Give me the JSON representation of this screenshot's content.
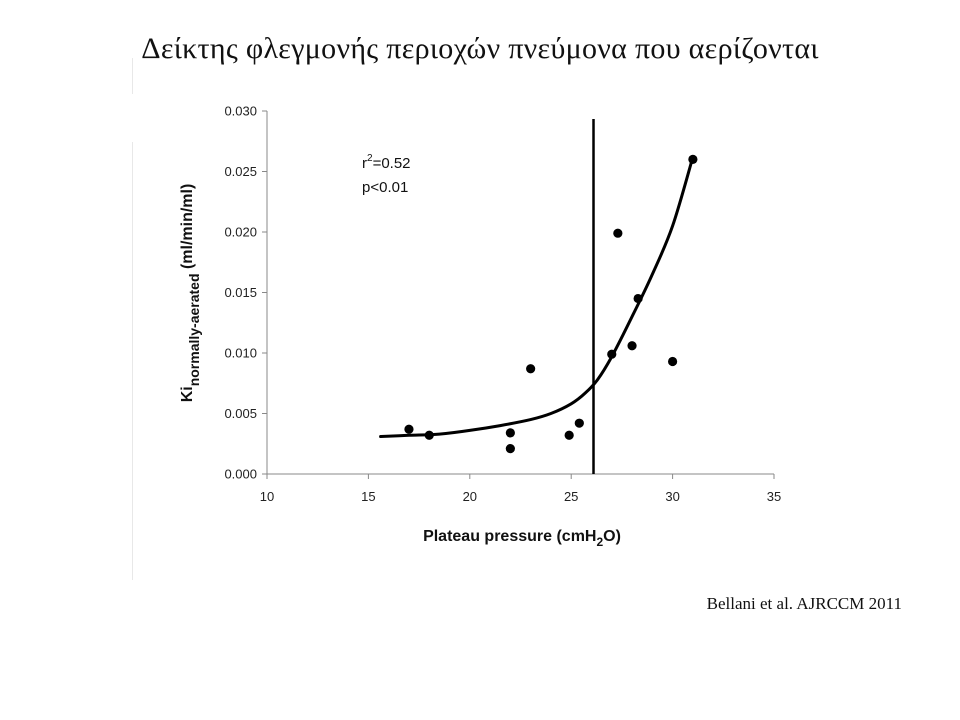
{
  "slide": {
    "title": "Δείκτης φλεγμονής περιοχών πνεύμονα που αερίζονται",
    "citation": "Bellani et al. AJRCCM 2011"
  },
  "chart_data": {
    "type": "scatter",
    "xlabel": {
      "main": "Plateau pressure (cmH",
      "sub": "2",
      "tail": "O)"
    },
    "ylabel": {
      "main": "Ki",
      "sub": "normally-aerated",
      "tail": " (ml/min/ml)"
    },
    "xlim": [
      10,
      35
    ],
    "ylim": [
      0,
      0.03
    ],
    "x_ticks": [
      10,
      15,
      20,
      25,
      30,
      35
    ],
    "y_ticks": [
      "0.000",
      "0.005",
      "0.010",
      "0.015",
      "0.020",
      "0.025",
      "0.030"
    ],
    "grid": false,
    "points": [
      {
        "x": 17.0,
        "y": 0.0037
      },
      {
        "x": 18.0,
        "y": 0.0032
      },
      {
        "x": 22.0,
        "y": 0.0034
      },
      {
        "x": 22.0,
        "y": 0.0021
      },
      {
        "x": 23.0,
        "y": 0.0087
      },
      {
        "x": 24.9,
        "y": 0.0032
      },
      {
        "x": 25.4,
        "y": 0.0042
      },
      {
        "x": 27.0,
        "y": 0.0099
      },
      {
        "x": 27.3,
        "y": 0.0199
      },
      {
        "x": 28.0,
        "y": 0.0106
      },
      {
        "x": 28.3,
        "y": 0.0145
      },
      {
        "x": 30.0,
        "y": 0.0093
      },
      {
        "x": 31.0,
        "y": 0.026
      }
    ],
    "fit_curve": [
      {
        "x": 15.6,
        "y": 0.0031
      },
      {
        "x": 17.0,
        "y": 0.0032
      },
      {
        "x": 18.5,
        "y": 0.0033
      },
      {
        "x": 20.0,
        "y": 0.0036
      },
      {
        "x": 21.5,
        "y": 0.004
      },
      {
        "x": 23.0,
        "y": 0.0045
      },
      {
        "x": 24.0,
        "y": 0.005
      },
      {
        "x": 25.0,
        "y": 0.0058
      },
      {
        "x": 25.7,
        "y": 0.0067
      },
      {
        "x": 26.3,
        "y": 0.0078
      },
      {
        "x": 27.0,
        "y": 0.0097
      },
      {
        "x": 28.0,
        "y": 0.013
      },
      {
        "x": 29.0,
        "y": 0.0165
      },
      {
        "x": 30.0,
        "y": 0.0205
      },
      {
        "x": 31.0,
        "y": 0.0262
      }
    ],
    "threshold_x": 26.1,
    "annotations": {
      "r_base": "r",
      "r_sup": "2",
      "r_value": "=0.52",
      "p": "p<0.01"
    },
    "colors": {
      "marks": "#000000",
      "axis": "#888888"
    }
  }
}
